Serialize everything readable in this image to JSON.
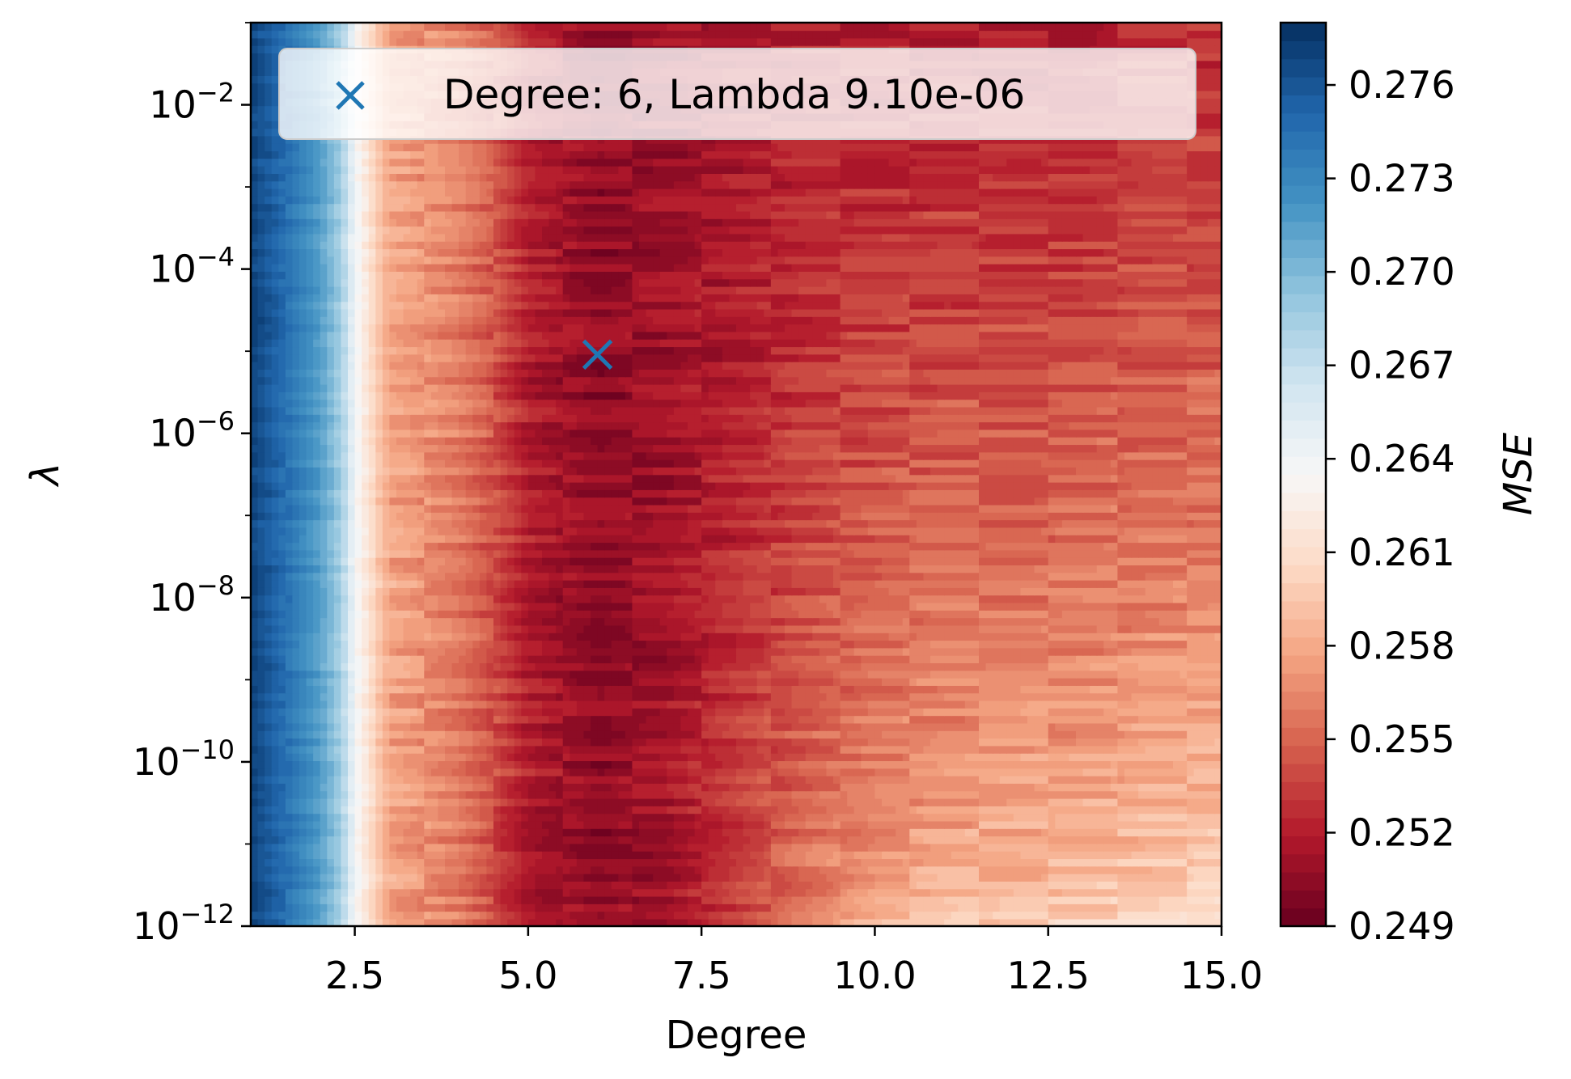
{
  "chart_data": {
    "type": "heatmap",
    "subtype": "filled-contour",
    "title": "",
    "xlabel": "Degree",
    "ylabel": "λ",
    "colorbar_label": "MSE",
    "colormap": "RdBu",
    "x_range": [
      1,
      15
    ],
    "y_range": [
      1e-12,
      0.1
    ],
    "y_scale": "log",
    "color_range": [
      0.249,
      0.278
    ],
    "x_ticks": [
      2.5,
      5.0,
      7.5,
      10.0,
      12.5,
      15.0
    ],
    "x_tick_labels": [
      "2.5",
      "5.0",
      "7.5",
      "10.0",
      "12.5",
      "15.0"
    ],
    "y_ticks": [
      1e-12,
      1e-10,
      1e-08,
      1e-06,
      0.0001,
      0.01
    ],
    "y_tick_labels": [
      {
        "base": "10",
        "exp": "−12"
      },
      {
        "base": "10",
        "exp": "−10"
      },
      {
        "base": "10",
        "exp": "−8"
      },
      {
        "base": "10",
        "exp": "−6"
      },
      {
        "base": "10",
        "exp": "−4"
      },
      {
        "base": "10",
        "exp": "−2"
      }
    ],
    "colorbar_ticks": [
      0.249,
      0.252,
      0.255,
      0.258,
      0.261,
      0.264,
      0.267,
      0.27,
      0.273,
      0.276
    ],
    "colorbar_tick_labels": [
      "0.249",
      "0.252",
      "0.255",
      "0.258",
      "0.261",
      "0.264",
      "0.267",
      "0.270",
      "0.273",
      "0.276"
    ],
    "degree_profile": {
      "degrees": [
        1,
        1.5,
        2,
        2.3,
        2.5,
        2.8,
        3,
        4,
        4.5,
        5,
        6,
        7,
        8,
        9,
        10,
        11,
        12,
        13,
        14,
        15
      ],
      "mse_at_high_lambda": [
        0.277,
        0.2745,
        0.2715,
        0.2685,
        0.264,
        0.26,
        0.2578,
        0.256,
        0.2545,
        0.252,
        0.2505,
        0.251,
        0.2515,
        0.252,
        0.252,
        0.2522,
        0.252,
        0.252,
        0.2525,
        0.2525
      ],
      "mse_at_low_lambda": [
        0.277,
        0.2745,
        0.2715,
        0.2685,
        0.264,
        0.26,
        0.2578,
        0.256,
        0.254,
        0.252,
        0.2505,
        0.2515,
        0.254,
        0.2565,
        0.2585,
        0.2595,
        0.26,
        0.2605,
        0.261,
        0.2615
      ]
    },
    "marker": {
      "x": 6,
      "y": 9.1e-06,
      "symbol": "x",
      "color": "#1f77b4"
    },
    "legend": {
      "label": "Degree: 6, Lambda 9.10e-06",
      "position": "top-center"
    }
  }
}
